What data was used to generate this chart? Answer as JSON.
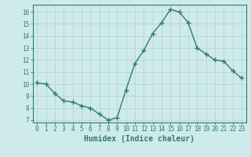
{
  "x": [
    0,
    1,
    2,
    3,
    4,
    5,
    6,
    7,
    8,
    9,
    10,
    11,
    12,
    13,
    14,
    15,
    16,
    17,
    18,
    19,
    20,
    21,
    22,
    23
  ],
  "y": [
    10.1,
    10.0,
    9.2,
    8.6,
    8.5,
    8.2,
    8.0,
    7.5,
    7.0,
    7.2,
    9.5,
    11.7,
    12.8,
    14.2,
    15.1,
    16.2,
    16.0,
    15.1,
    13.0,
    12.5,
    12.0,
    11.9,
    11.1,
    10.5
  ],
  "line_color": "#2e7d6e",
  "marker": "+",
  "marker_size": 4,
  "linewidth": 1.0,
  "xlabel": "Humidex (Indice chaleur)",
  "bg_color": "#ceeaea",
  "grid_color": "#b8d8d8",
  "xlim": [
    -0.5,
    23.5
  ],
  "ylim": [
    6.8,
    16.6
  ],
  "yticks": [
    7,
    8,
    9,
    10,
    11,
    12,
    13,
    14,
    15,
    16
  ],
  "xticks": [
    0,
    1,
    2,
    3,
    4,
    5,
    6,
    7,
    8,
    9,
    10,
    11,
    12,
    13,
    14,
    15,
    16,
    17,
    18,
    19,
    20,
    21,
    22,
    23
  ],
  "tick_fontsize": 5.5,
  "xlabel_fontsize": 7.0,
  "text_color": "#2e7d6e"
}
